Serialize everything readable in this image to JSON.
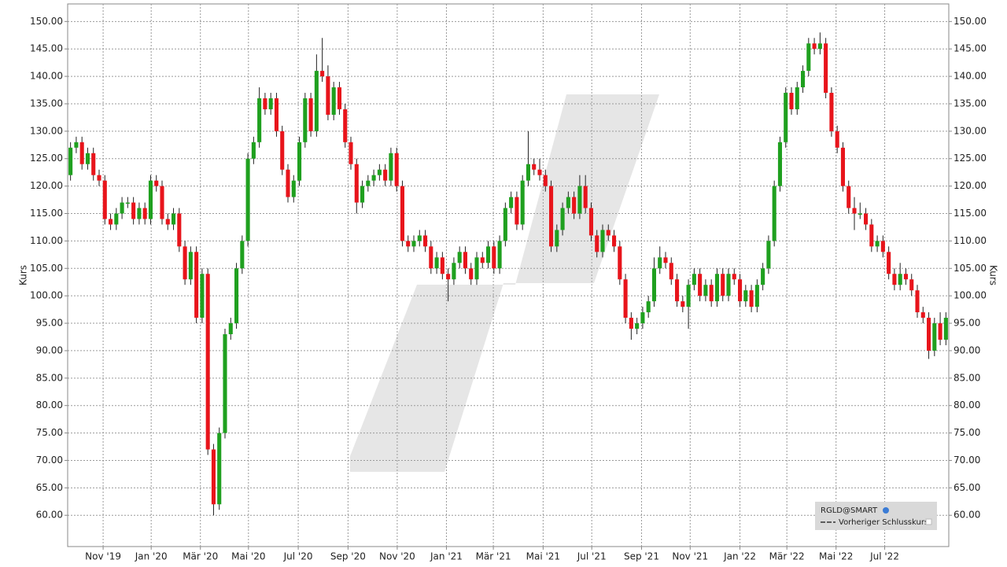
{
  "chart_data": {
    "type": "candlestick",
    "ylabel": "Kurs",
    "legend": {
      "symbol": "RGLD@SMART",
      "entries": [
        "Vorheriger Schlusskurs"
      ],
      "position": "lower right"
    },
    "up_color": "#1fa01f",
    "down_color": "#e8141b",
    "grid": true,
    "xlim": [
      -0.5,
      153.5
    ],
    "ylim": [
      54.3,
      153.2
    ],
    "xticks": [
      {
        "value": 5.7,
        "label": "Nov '19"
      },
      {
        "value": 14.1,
        "label": "Jan '20"
      },
      {
        "value": 22.7,
        "label": "Mär '20"
      },
      {
        "value": 31.1,
        "label": "Mai '20"
      },
      {
        "value": 39.8,
        "label": "Jul '20"
      },
      {
        "value": 48.5,
        "label": "Sep '20"
      },
      {
        "value": 57.1,
        "label": "Nov '20"
      },
      {
        "value": 65.7,
        "label": "Jan '21"
      },
      {
        "value": 73.9,
        "label": "Mär '21"
      },
      {
        "value": 82.6,
        "label": "Mai '21"
      },
      {
        "value": 91.1,
        "label": "Jul '21"
      },
      {
        "value": 99.8,
        "label": "Sep '21"
      },
      {
        "value": 108.3,
        "label": "Nov '21"
      },
      {
        "value": 117,
        "label": "Jan '22"
      },
      {
        "value": 125.2,
        "label": "Mär '22"
      },
      {
        "value": 133.8,
        "label": "Mai '22"
      },
      {
        "value": 142.3,
        "label": "Jul '22"
      }
    ],
    "yticks": [
      {
        "value": 60,
        "label": "60.00"
      },
      {
        "value": 65,
        "label": "65.00"
      },
      {
        "value": 70,
        "label": "70.00"
      },
      {
        "value": 75,
        "label": "75.00"
      },
      {
        "value": 80,
        "label": "80.00"
      },
      {
        "value": 85,
        "label": "85.00"
      },
      {
        "value": 90,
        "label": "90.00"
      },
      {
        "value": 95,
        "label": "95.00"
      },
      {
        "value": 100,
        "label": "100.00"
      },
      {
        "value": 105,
        "label": "105.00"
      },
      {
        "value": 110,
        "label": "110.00"
      },
      {
        "value": 115,
        "label": "115.00"
      },
      {
        "value": 120,
        "label": "120.00"
      },
      {
        "value": 125,
        "label": "125.00"
      },
      {
        "value": 130,
        "label": "130.00"
      },
      {
        "value": 135,
        "label": "135.00"
      },
      {
        "value": 140,
        "label": "140.00"
      },
      {
        "value": 145,
        "label": "145.00"
      },
      {
        "value": 150,
        "label": "150.00"
      }
    ],
    "x": [
      0,
      1,
      2,
      3,
      4,
      5,
      6,
      7,
      8,
      9,
      10,
      11,
      12,
      13,
      14,
      15,
      16,
      17,
      18,
      19,
      20,
      21,
      22,
      23,
      24,
      25,
      26,
      27,
      28,
      29,
      30,
      31,
      32,
      33,
      34,
      35,
      36,
      37,
      38,
      39,
      40,
      41,
      42,
      43,
      44,
      45,
      46,
      47,
      48,
      49,
      50,
      51,
      52,
      53,
      54,
      55,
      56,
      57,
      58,
      59,
      60,
      61,
      62,
      63,
      64,
      65,
      66,
      67,
      68,
      69,
      70,
      71,
      72,
      73,
      74,
      75,
      76,
      77,
      78,
      79,
      80,
      81,
      82,
      83,
      84,
      85,
      86,
      87,
      88,
      89,
      90,
      91,
      92,
      93,
      94,
      95,
      96,
      97,
      98,
      99,
      100,
      101,
      102,
      103,
      104,
      105,
      106,
      107,
      108,
      109,
      110,
      111,
      112,
      113,
      114,
      115,
      116,
      117,
      118,
      119,
      120,
      121,
      122,
      123,
      124,
      125,
      126,
      127,
      128,
      129,
      130,
      131,
      132,
      133,
      134,
      135,
      136,
      137,
      138,
      139,
      140,
      141,
      142,
      143,
      144,
      145,
      146,
      147,
      148,
      149,
      150,
      151,
      152,
      153
    ],
    "open": [
      122,
      127,
      128,
      124,
      126,
      122,
      121,
      114,
      113,
      115,
      117,
      117,
      114,
      116,
      114,
      121,
      120,
      114,
      113,
      115,
      109,
      103,
      108,
      96,
      104,
      72,
      62,
      75,
      93,
      95,
      105,
      110,
      125,
      128,
      136,
      134,
      136,
      130,
      123,
      118,
      121,
      128,
      136,
      130,
      141,
      140,
      133,
      138,
      134,
      128,
      124,
      117,
      120,
      121,
      122,
      123,
      121,
      126,
      120,
      110,
      109,
      110,
      111,
      109,
      105,
      107,
      104,
      103,
      106,
      108,
      105,
      103,
      107,
      106,
      109,
      105,
      110,
      116,
      118,
      113,
      121,
      124,
      123,
      122,
      120,
      109,
      112,
      116,
      118,
      115,
      120,
      116,
      111,
      108,
      112,
      111,
      109,
      103,
      96,
      94,
      95,
      97,
      99,
      105,
      107,
      106,
      103,
      99,
      98,
      102,
      104,
      100,
      102,
      99,
      104,
      100,
      104,
      103,
      99,
      101,
      98,
      102,
      105,
      110,
      120,
      128,
      137,
      134,
      138,
      141,
      146,
      145,
      146,
      137,
      130,
      127,
      120,
      116,
      115,
      115,
      113,
      109,
      110,
      108,
      104,
      102,
      104,
      103,
      101,
      97,
      96,
      90,
      95,
      92
    ],
    "high": [
      128,
      129,
      129,
      127,
      127,
      123,
      122,
      115,
      116,
      118,
      118,
      118,
      117,
      117,
      122,
      122,
      121,
      115,
      116,
      116,
      110,
      109,
      109,
      105,
      105,
      73,
      76,
      94,
      96,
      106,
      111,
      126,
      129,
      138,
      137,
      137,
      137,
      131,
      124,
      122,
      129,
      137,
      137,
      144,
      147,
      142,
      139,
      139,
      135,
      129,
      125,
      121,
      122,
      123,
      124,
      124,
      127,
      127,
      121,
      111,
      111,
      112,
      112,
      110,
      108,
      108,
      105,
      107,
      109,
      109,
      106,
      108,
      108,
      110,
      110,
      111,
      117,
      119,
      119,
      122,
      130,
      125,
      125,
      123,
      121,
      113,
      117,
      119,
      119,
      122,
      122,
      117,
      112,
      113,
      113,
      112,
      110,
      104,
      97,
      96,
      98,
      100,
      107,
      109,
      108,
      107,
      104,
      100,
      103,
      105,
      105,
      103,
      103,
      105,
      105,
      105,
      105,
      104,
      102,
      102,
      103,
      106,
      111,
      121,
      129,
      138,
      138,
      139,
      142,
      147,
      147,
      148,
      147,
      138,
      131,
      128,
      121,
      118,
      117,
      116,
      114,
      111,
      111,
      109,
      105,
      106,
      105,
      104,
      102,
      98,
      97,
      96,
      97,
      97
    ],
    "low": [
      121,
      126,
      123,
      123,
      121,
      120,
      113,
      112,
      112,
      114,
      116,
      113,
      113,
      113,
      113,
      119,
      113,
      112,
      112,
      108,
      102,
      102,
      95,
      95,
      71,
      60,
      61,
      74,
      92,
      94,
      104,
      109,
      124,
      127,
      133,
      133,
      129,
      122,
      117,
      117,
      120,
      127,
      129,
      129,
      139,
      132,
      132,
      133,
      127,
      123,
      115,
      116,
      119,
      120,
      121,
      120,
      120,
      119,
      109,
      108,
      108,
      109,
      108,
      104,
      104,
      103,
      99,
      102,
      105,
      104,
      102,
      102,
      105,
      105,
      104,
      104,
      109,
      115,
      112,
      112,
      120,
      122,
      121,
      119,
      108,
      108,
      111,
      115,
      114,
      114,
      115,
      110,
      107,
      107,
      110,
      108,
      102,
      95,
      92,
      93,
      94,
      96,
      98,
      104,
      105,
      102,
      98,
      97,
      94,
      101,
      99,
      99,
      98,
      98,
      99,
      99,
      102,
      98,
      98,
      97,
      97,
      101,
      104,
      109,
      119,
      127,
      133,
      133,
      137,
      140,
      144,
      144,
      136,
      129,
      126,
      119,
      115,
      112,
      114,
      112,
      108,
      108,
      107,
      103,
      101,
      101,
      102,
      100,
      96,
      95,
      88.5,
      89,
      91,
      91
    ],
    "close": [
      127,
      128,
      124,
      126,
      122,
      121,
      114,
      113,
      115,
      117,
      117,
      114,
      116,
      114,
      121,
      120,
      114,
      113,
      115,
      109,
      103,
      108,
      96,
      104,
      72,
      62,
      75,
      93,
      95,
      105,
      110,
      125,
      128,
      136,
      134,
      136,
      130,
      123,
      118,
      121,
      128,
      136,
      130,
      141,
      140,
      133,
      138,
      134,
      128,
      124,
      117,
      120,
      121,
      122,
      123,
      121,
      126,
      120,
      110,
      109,
      110,
      111,
      109,
      105,
      107,
      104,
      103,
      106,
      108,
      105,
      103,
      107,
      106,
      109,
      105,
      110,
      116,
      118,
      113,
      121,
      124,
      123,
      122,
      120,
      109,
      112,
      116,
      118,
      115,
      120,
      116,
      111,
      108,
      112,
      111,
      109,
      103,
      96,
      94,
      95,
      97,
      99,
      105,
      107,
      106,
      103,
      99,
      98,
      102,
      104,
      100,
      102,
      99,
      104,
      100,
      104,
      103,
      99,
      101,
      98,
      102,
      105,
      110,
      120,
      128,
      137,
      134,
      138,
      141,
      146,
      145,
      146,
      137,
      130,
      127,
      120,
      116,
      115,
      115,
      113,
      109,
      110,
      108,
      104,
      102,
      104,
      103,
      101,
      97,
      96,
      90,
      95,
      92,
      96
    ]
  }
}
